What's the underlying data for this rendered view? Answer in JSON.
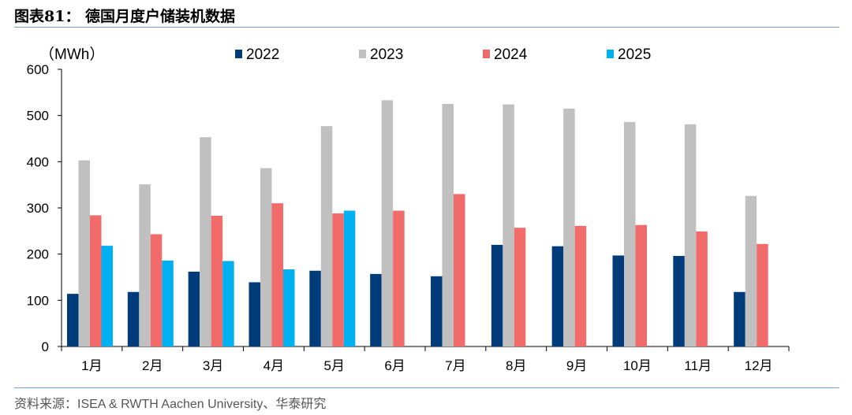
{
  "figure": {
    "title": "图表81： 德国月度户储装机数据",
    "source": "资料来源：ISEA & RWTH Aachen University、华泰研究"
  },
  "chart_data": {
    "type": "bar",
    "unit_label": "（MWh）",
    "categories": [
      "1月",
      "2月",
      "3月",
      "4月",
      "5月",
      "6月",
      "7月",
      "8月",
      "9月",
      "10月",
      "11月",
      "12月"
    ],
    "ylim": [
      0,
      600
    ],
    "yticks": [
      0,
      100,
      200,
      300,
      400,
      500,
      600
    ],
    "grid": false,
    "legend_position": "top",
    "series": [
      {
        "name": "2022",
        "color": "#003b7a",
        "values": [
          114,
          118,
          162,
          139,
          164,
          157,
          152,
          220,
          217,
          197,
          196,
          118
        ]
      },
      {
        "name": "2023",
        "color": "#c0c0c0",
        "values": [
          403,
          351,
          453,
          386,
          477,
          533,
          525,
          524,
          515,
          486,
          481,
          326
        ]
      },
      {
        "name": "2024",
        "color": "#f26b6b",
        "values": [
          284,
          243,
          283,
          310,
          288,
          294,
          330,
          257,
          261,
          263,
          249,
          222
        ]
      },
      {
        "name": "2025",
        "color": "#00b0f0",
        "values": [
          218,
          186,
          185,
          167,
          294,
          null,
          null,
          null,
          null,
          null,
          null,
          null
        ]
      }
    ]
  }
}
